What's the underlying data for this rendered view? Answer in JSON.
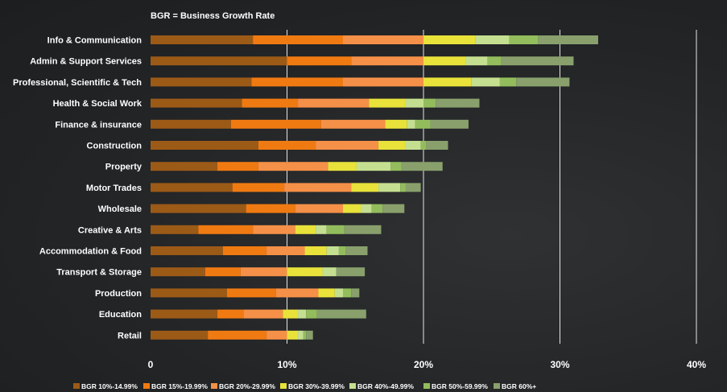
{
  "chart_data": {
    "type": "bar",
    "stacked": true,
    "orientation": "horizontal",
    "note": "BGR = Business Growth Rate",
    "categories": [
      "Info & Communication",
      "Admin & Support Services",
      "Professional, Scientific & Tech",
      "Health & Social Work",
      "Finance & insurance",
      "Construction",
      "Property",
      "Motor Trades",
      "Wholesale",
      "Creative & Arts",
      "Accommodation & Food",
      "Transport & Storage",
      "Production",
      "Education",
      "Retail"
    ],
    "series": [
      {
        "name": "BGR 10%-14.99%",
        "color": "#9c5a17",
        "values": [
          7.5,
          10.0,
          7.4,
          6.7,
          5.9,
          7.9,
          4.9,
          6.0,
          7.0,
          3.5,
          5.3,
          4.0,
          5.6,
          4.9,
          4.2
        ]
      },
      {
        "name": "BGR 15%-19.99%",
        "color": "#f07a12",
        "values": [
          6.6,
          4.7,
          6.7,
          4.1,
          6.6,
          4.2,
          3.0,
          3.8,
          3.6,
          4.0,
          3.2,
          2.6,
          3.6,
          1.9,
          4.3
        ]
      },
      {
        "name": "BGR 20%-29.99%",
        "color": "#f59048",
        "values": [
          5.9,
          5.3,
          5.9,
          5.2,
          4.7,
          4.6,
          5.1,
          4.9,
          3.5,
          3.1,
          2.8,
          3.4,
          3.1,
          2.9,
          1.5
        ]
      },
      {
        "name": "BGR 30%-39.99%",
        "color": "#e8e23a",
        "values": [
          3.8,
          3.1,
          3.5,
          2.7,
          1.6,
          2.0,
          2.1,
          2.0,
          1.3,
          1.5,
          1.6,
          2.6,
          1.2,
          1.1,
          0.8
        ]
      },
      {
        "name": "BGR 40%-49.99%",
        "color": "#c5df90",
        "values": [
          2.5,
          1.6,
          2.1,
          1.3,
          0.6,
          1.1,
          2.5,
          1.6,
          0.8,
          0.8,
          0.9,
          1.0,
          0.6,
          0.6,
          0.4
        ]
      },
      {
        "name": "BGR 50%-59.99%",
        "color": "#93bd5c",
        "values": [
          2.1,
          1.0,
          1.2,
          0.9,
          1.1,
          0.4,
          0.8,
          0.4,
          0.8,
          1.3,
          0.5,
          0.0,
          0.6,
          0.8,
          0.2
        ]
      },
      {
        "name": "BGR 60%+",
        "color": "#89a06c",
        "values": [
          4.4,
          5.3,
          3.9,
          3.2,
          2.8,
          1.6,
          3.0,
          1.1,
          1.6,
          2.7,
          1.6,
          2.1,
          0.6,
          3.6,
          0.5
        ]
      }
    ],
    "x_ticks": [
      "0",
      "10%",
      "20%",
      "30%",
      "40%"
    ],
    "xlim": [
      0,
      40
    ],
    "grid": true,
    "legend_placement": "bottom"
  }
}
